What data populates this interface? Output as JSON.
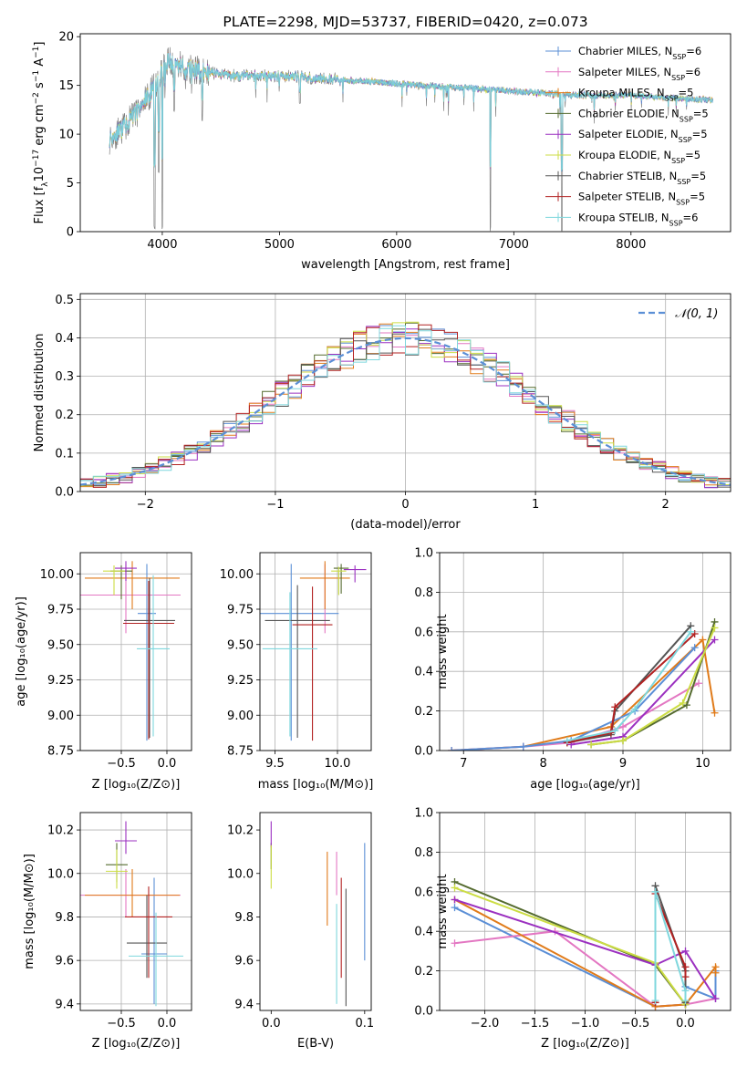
{
  "colors": {
    "chabrier_miles": "#5b8fd6",
    "salpeter_miles": "#e377c2",
    "kroupa_miles": "#e07b1a",
    "chabrier_elodie": "#556b2f",
    "salpeter_elodie": "#9b30c0",
    "kroupa_elodie": "#ccdd44",
    "chabrier_stelib": "#555555",
    "salpeter_stelib": "#b22222",
    "kroupa_stelib": "#7fd7dd",
    "data": "#808080",
    "normal": "#5b8fd6"
  },
  "chart_data": [
    {
      "type": "line",
      "title": "PLATE=2298, MJD=53737, FIBERID=0420, z=0.073",
      "xlabel": "wavelength [Angstrom, rest frame]",
      "ylabel_parts": [
        "Flux [f",
        "λ",
        "10",
        "−17",
        " erg cm",
        "−2",
        " s",
        "−1",
        " A",
        "−1",
        "]"
      ],
      "xlim": [
        3300,
        8850
      ],
      "ylim": [
        0,
        20.3
      ],
      "xticks": [
        4000,
        5000,
        6000,
        7000,
        8000
      ],
      "yticks": [
        0,
        5,
        10,
        15,
        20
      ],
      "grid": false,
      "legend_placement": "top-right",
      "legend": [
        {
          "base": "Chabrier MILES, N",
          "sub": "SSP",
          "tail": "=6",
          "color_key": "chabrier_miles"
        },
        {
          "base": "Salpeter MILES, N",
          "sub": "SSP",
          "tail": "=6",
          "color_key": "salpeter_miles"
        },
        {
          "base": "Kroupa MILES, N",
          "sub": "SSP",
          "tail": "=5",
          "color_key": "kroupa_miles"
        },
        {
          "base": "Chabrier ELODIE, N",
          "sub": "SSP",
          "tail": "=5",
          "color_key": "chabrier_elodie"
        },
        {
          "base": "Salpeter ELODIE, N",
          "sub": "SSP",
          "tail": "=5",
          "color_key": "salpeter_elodie"
        },
        {
          "base": "Kroupa ELODIE, N",
          "sub": "SSP",
          "tail": "=5",
          "color_key": "kroupa_elodie"
        },
        {
          "base": "Chabrier STELIB, N",
          "sub": "SSP",
          "tail": "=5",
          "color_key": "chabrier_stelib"
        },
        {
          "base": "Salpeter STELIB, N",
          "sub": "SSP",
          "tail": "=5",
          "color_key": "salpeter_stelib"
        },
        {
          "base": "Kroupa STELIB, N",
          "sub": "SSP",
          "tail": "=6",
          "color_key": "kroupa_stelib"
        }
      ],
      "continuum": {
        "wavelength": [
          3550,
          3700,
          3850,
          3950,
          4050,
          4300,
          4600,
          5000,
          5500,
          6000,
          6500,
          7000,
          7500,
          8000,
          8500,
          8700
        ],
        "flux": [
          9.5,
          11.0,
          13.5,
          15.0,
          17.5,
          16.5,
          16.0,
          16.0,
          15.6,
          15.2,
          14.8,
          14.4,
          14.0,
          14.0,
          13.6,
          13.5
        ]
      },
      "dips": [
        {
          "wavelength": 3934,
          "flux": 0.0
        },
        {
          "wavelength": 3969,
          "flux": 6.0
        },
        {
          "wavelength": 4000,
          "flux": 0.0
        },
        {
          "wavelength": 4102,
          "flux": 12.0
        },
        {
          "wavelength": 4340,
          "flux": 11.0
        },
        {
          "wavelength": 5175,
          "flux": 13.0
        },
        {
          "wavelength": 6800,
          "flux": 0.0
        },
        {
          "wavelength": 7410,
          "flux": 0.0
        }
      ]
    },
    {
      "type": "bar",
      "xlabel": "(data-model)/error",
      "ylabel": "Normed distribution",
      "xlim": [
        -2.5,
        2.5
      ],
      "ylim": [
        0,
        0.515
      ],
      "xticks": [
        -2,
        -1,
        0,
        1,
        2
      ],
      "yticks": [
        0.0,
        0.1,
        0.2,
        0.3,
        0.4,
        0.5
      ],
      "grid": true,
      "legend_placement": "top-right",
      "legend_label": "𝒩(0, 1)",
      "bin_width": 0.1,
      "bin_start": -2.5,
      "series_keys": [
        "chabrier_miles",
        "salpeter_miles",
        "kroupa_miles",
        "chabrier_elodie",
        "salpeter_elodie",
        "kroupa_elodie",
        "chabrier_stelib",
        "salpeter_stelib",
        "kroupa_stelib"
      ],
      "jitter_seed": 7
    },
    {
      "type": "scatter",
      "xlabel": "Z [log₁₀(Z/Z⊙)]",
      "ylabel": "age  [log₁₀(age/yr)]",
      "xlim": [
        -0.95,
        0.27
      ],
      "ylim": [
        8.75,
        10.15
      ],
      "xticks": [
        -0.5,
        0.0
      ],
      "yticks": [
        8.75,
        9.0,
        9.25,
        9.5,
        9.75,
        10.0
      ],
      "grid": true,
      "points": [
        {
          "key": "chabrier_miles",
          "x": -0.22,
          "y": 9.72,
          "xerr": 0.1,
          "yerr": [
            0.9,
            0.35
          ]
        },
        {
          "key": "salpeter_miles",
          "x": -0.45,
          "y": 9.85,
          "xerr": 0.6,
          "yerr": [
            0.27,
            0.22
          ]
        },
        {
          "key": "kroupa_miles",
          "x": -0.38,
          "y": 9.97,
          "xerr": 0.52,
          "yerr": [
            0.22,
            0.12
          ]
        },
        {
          "key": "chabrier_elodie",
          "x": -0.5,
          "y": 10.02,
          "xerr": 0.12,
          "yerr": [
            0.2,
            0.04
          ]
        },
        {
          "key": "salpeter_elodie",
          "x": -0.45,
          "y": 10.04,
          "xerr": 0.12,
          "yerr": [
            0.09,
            0.05
          ]
        },
        {
          "key": "kroupa_elodie",
          "x": -0.58,
          "y": 10.02,
          "xerr": 0.12,
          "yerr": [
            0.17,
            0.04
          ]
        },
        {
          "key": "chabrier_stelib",
          "x": -0.19,
          "y": 9.67,
          "xerr": 0.28,
          "yerr": [
            0.83,
            0.3
          ]
        },
        {
          "key": "salpeter_stelib",
          "x": -0.2,
          "y": 9.65,
          "xerr": 0.28,
          "yerr": [
            0.82,
            0.3
          ]
        },
        {
          "key": "kroupa_stelib",
          "x": -0.15,
          "y": 9.47,
          "xerr": 0.18,
          "yerr": [
            0.62,
            0.52
          ]
        }
      ]
    },
    {
      "type": "scatter",
      "xlabel": "mass [log₁₀(M/M⊙)]",
      "ylabel": "",
      "xlim": [
        9.38,
        10.27
      ],
      "ylim": [
        8.75,
        10.15
      ],
      "xticks": [
        9.5,
        10.0
      ],
      "yticks": [
        8.75,
        9.0,
        9.25,
        9.5,
        9.75,
        10.0
      ],
      "grid": true,
      "points": [
        {
          "key": "chabrier_miles",
          "x": 9.63,
          "y": 9.72,
          "xerr": 0.38,
          "yerr": [
            0.9,
            0.35
          ]
        },
        {
          "key": "salpeter_miles",
          "x": 9.9,
          "y": 9.85,
          "xerr": 0.0,
          "yerr": [
            0.27,
            0.22
          ]
        },
        {
          "key": "kroupa_miles",
          "x": 9.9,
          "y": 9.97,
          "xerr": 0.2,
          "yerr": [
            0.22,
            0.12
          ]
        },
        {
          "key": "chabrier_elodie",
          "x": 10.03,
          "y": 10.04,
          "xerr": 0.06,
          "yerr": [
            0.18,
            0.03
          ]
        },
        {
          "key": "salpeter_elodie",
          "x": 10.14,
          "y": 10.03,
          "xerr": 0.09,
          "yerr": [
            0.09,
            0.03
          ]
        },
        {
          "key": "kroupa_elodie",
          "x": 10.01,
          "y": 10.02,
          "xerr": 0.06,
          "yerr": [
            0.17,
            0.03
          ]
        },
        {
          "key": "chabrier_stelib",
          "x": 9.68,
          "y": 9.67,
          "xerr": 0.26,
          "yerr": [
            0.83,
            0.25
          ]
        },
        {
          "key": "salpeter_stelib",
          "x": 9.8,
          "y": 9.64,
          "xerr": 0.16,
          "yerr": [
            0.82,
            0.27
          ]
        },
        {
          "key": "kroupa_stelib",
          "x": 9.62,
          "y": 9.47,
          "xerr": 0.22,
          "yerr": [
            0.62,
            0.4
          ]
        }
      ]
    },
    {
      "type": "line",
      "xlabel": "age  [log₁₀(age/yr)]",
      "ylabel": "mass weight",
      "xlim": [
        6.7,
        10.35
      ],
      "ylim": [
        0,
        1.0
      ],
      "xticks": [
        7,
        8,
        9,
        10
      ],
      "yticks": [
        0.0,
        0.2,
        0.4,
        0.6,
        0.8,
        1.0
      ],
      "grid": true,
      "series": [
        {
          "key": "kroupa_miles",
          "x": [
            6.85,
            7.75,
            8.85,
            10.0,
            10.15
          ],
          "y": [
            0.0,
            0.02,
            0.12,
            0.56,
            0.19
          ]
        },
        {
          "key": "salpeter_miles",
          "x": [
            6.85,
            7.75,
            8.35,
            9.0,
            9.95
          ],
          "y": [
            0.0,
            0.02,
            0.04,
            0.12,
            0.34
          ]
        },
        {
          "key": "chabrier_miles",
          "x": [
            6.85,
            7.75,
            8.35,
            9.15,
            9.9
          ],
          "y": [
            0.0,
            0.02,
            0.05,
            0.2,
            0.52
          ]
        },
        {
          "key": "salpeter_elodie",
          "x": [
            8.35,
            9.0,
            10.15
          ],
          "y": [
            0.03,
            0.07,
            0.56
          ]
        },
        {
          "key": "chabrier_elodie",
          "x": [
            8.6,
            9.0,
            9.8,
            10.15
          ],
          "y": [
            0.03,
            0.05,
            0.23,
            0.65
          ]
        },
        {
          "key": "kroupa_elodie",
          "x": [
            8.6,
            9.0,
            9.75,
            10.15
          ],
          "y": [
            0.03,
            0.05,
            0.24,
            0.62
          ]
        },
        {
          "key": "chabrier_stelib",
          "x": [
            8.3,
            8.85,
            8.9,
            9.85
          ],
          "y": [
            0.04,
            0.08,
            0.2,
            0.63
          ]
        },
        {
          "key": "salpeter_stelib",
          "x": [
            8.3,
            8.85,
            8.9,
            9.9
          ],
          "y": [
            0.04,
            0.09,
            0.22,
            0.59
          ]
        },
        {
          "key": "kroupa_stelib",
          "x": [
            8.3,
            8.9,
            9.15,
            9.85
          ],
          "y": [
            0.05,
            0.1,
            0.21,
            0.6
          ]
        }
      ]
    },
    {
      "type": "scatter",
      "xlabel": "Z [log₁₀(Z/Z⊙)]",
      "ylabel": "mass [log₁₀(M/M⊙)]",
      "xlim": [
        -0.95,
        0.27
      ],
      "ylim": [
        9.37,
        10.28
      ],
      "xticks": [
        -0.5,
        0.0
      ],
      "yticks": [
        9.4,
        9.6,
        9.8,
        10.0,
        10.2
      ],
      "grid": true,
      "points": [
        {
          "key": "chabrier_miles",
          "x": -0.14,
          "y": 9.63,
          "xerr": 0.14,
          "yerr": [
            0.23,
            0.35
          ]
        },
        {
          "key": "salpeter_miles",
          "x": -0.45,
          "y": 9.9,
          "xerr": 0.6,
          "yerr": [
            0.1,
            0.12
          ]
        },
        {
          "key": "kroupa_miles",
          "x": -0.38,
          "y": 9.9,
          "xerr": 0.52,
          "yerr": [
            0.1,
            0.12
          ]
        },
        {
          "key": "chabrier_elodie",
          "x": -0.55,
          "y": 10.04,
          "xerr": 0.12,
          "yerr": [
            0.08,
            0.1
          ]
        },
        {
          "key": "salpeter_elodie",
          "x": -0.45,
          "y": 10.15,
          "xerr": 0.12,
          "yerr": [
            0.06,
            0.09
          ]
        },
        {
          "key": "kroupa_elodie",
          "x": -0.55,
          "y": 10.01,
          "xerr": 0.12,
          "yerr": [
            0.08,
            0.1
          ]
        },
        {
          "key": "chabrier_stelib",
          "x": -0.22,
          "y": 9.68,
          "xerr": 0.22,
          "yerr": [
            0.16,
            0.22
          ]
        },
        {
          "key": "salpeter_stelib",
          "x": -0.2,
          "y": 9.8,
          "xerr": 0.26,
          "yerr": [
            0.28,
            0.14
          ]
        },
        {
          "key": "kroupa_stelib",
          "x": -0.12,
          "y": 9.62,
          "xerr": 0.3,
          "yerr": [
            0.23,
            0.2
          ]
        }
      ]
    },
    {
      "type": "scatter",
      "xlabel": "E(B-V)",
      "ylabel": "",
      "xlim": [
        -0.012,
        0.107
      ],
      "ylim": [
        9.37,
        10.28
      ],
      "xticks": [
        0.0,
        0.1
      ],
      "yticks": [
        9.4,
        9.6,
        9.8,
        10.0,
        10.2
      ],
      "grid": false,
      "points": [
        {
          "key": "chabrier_miles",
          "x": 0.1,
          "y": 9.87,
          "xerr": 0,
          "yerr": [
            0.27,
            0.27
          ]
        },
        {
          "key": "salpeter_miles",
          "x": 0.07,
          "y": 10.0,
          "xerr": 0,
          "yerr": [
            0.1,
            0.1
          ]
        },
        {
          "key": "kroupa_miles",
          "x": 0.06,
          "y": 9.93,
          "xerr": 0,
          "yerr": [
            0.17,
            0.17
          ]
        },
        {
          "key": "chabrier_elodie",
          "x": 0.0,
          "y": 10.08,
          "xerr": 0,
          "yerr": [
            0.06,
            0.06
          ]
        },
        {
          "key": "salpeter_elodie",
          "x": 0.0,
          "y": 10.18,
          "xerr": 0,
          "yerr": [
            0.06,
            0.06
          ]
        },
        {
          "key": "kroupa_elodie",
          "x": 0.0,
          "y": 10.03,
          "xerr": 0,
          "yerr": [
            0.1,
            0.1
          ]
        },
        {
          "key": "chabrier_stelib",
          "x": 0.08,
          "y": 9.66,
          "xerr": 0,
          "yerr": [
            0.27,
            0.27
          ]
        },
        {
          "key": "salpeter_stelib",
          "x": 0.075,
          "y": 9.75,
          "xerr": 0,
          "yerr": [
            0.23,
            0.23
          ]
        },
        {
          "key": "kroupa_stelib",
          "x": 0.07,
          "y": 9.63,
          "xerr": 0,
          "yerr": [
            0.23,
            0.23
          ]
        }
      ]
    },
    {
      "type": "line",
      "xlabel": "Z [log₁₀(Z/Z⊙)]",
      "ylabel": "mass weight",
      "xlim": [
        -2.45,
        0.45
      ],
      "ylim": [
        0,
        1.0
      ],
      "xticks": [
        -2.0,
        -1.5,
        -1.0,
        -0.5,
        0.0
      ],
      "yticks": [
        0.0,
        0.2,
        0.4,
        0.6,
        0.8,
        1.0
      ],
      "grid": true,
      "series": [
        {
          "key": "chabrier_miles",
          "x": [
            -2.3,
            -0.3,
            0.0,
            0.0,
            0.3,
            0.3
          ],
          "y": [
            0.52,
            0.02,
            0.03,
            0.12,
            0.06,
            0.2
          ]
        },
        {
          "key": "salpeter_miles",
          "x": [
            -2.3,
            -1.3,
            -0.3,
            0.0,
            0.3
          ],
          "y": [
            0.34,
            0.4,
            0.02,
            0.03,
            0.06
          ]
        },
        {
          "key": "kroupa_miles",
          "x": [
            -2.3,
            -0.3,
            0.0,
            0.3,
            0.3
          ],
          "y": [
            0.56,
            0.02,
            0.03,
            0.22,
            0.19
          ]
        },
        {
          "key": "chabrier_elodie",
          "x": [
            -2.3,
            -0.3,
            0.0
          ],
          "y": [
            0.65,
            0.23,
            0.03
          ]
        },
        {
          "key": "salpeter_elodie",
          "x": [
            -2.3,
            -0.3,
            0.0,
            0.3
          ],
          "y": [
            0.56,
            0.23,
            0.3,
            0.06
          ]
        },
        {
          "key": "kroupa_elodie",
          "x": [
            -2.3,
            -0.3,
            0.0
          ],
          "y": [
            0.62,
            0.24,
            0.03
          ]
        },
        {
          "key": "chabrier_stelib",
          "x": [
            -0.3,
            -0.3,
            0.0,
            0.0
          ],
          "y": [
            0.04,
            0.63,
            0.2,
            0.04
          ]
        },
        {
          "key": "salpeter_stelib",
          "x": [
            -0.3,
            -0.3,
            0.0,
            0.0
          ],
          "y": [
            0.04,
            0.59,
            0.22,
            0.17
          ]
        },
        {
          "key": "kroupa_stelib",
          "x": [
            -0.3,
            -0.3,
            0.0,
            0.0
          ],
          "y": [
            0.05,
            0.6,
            0.1,
            0.05
          ]
        }
      ]
    }
  ]
}
